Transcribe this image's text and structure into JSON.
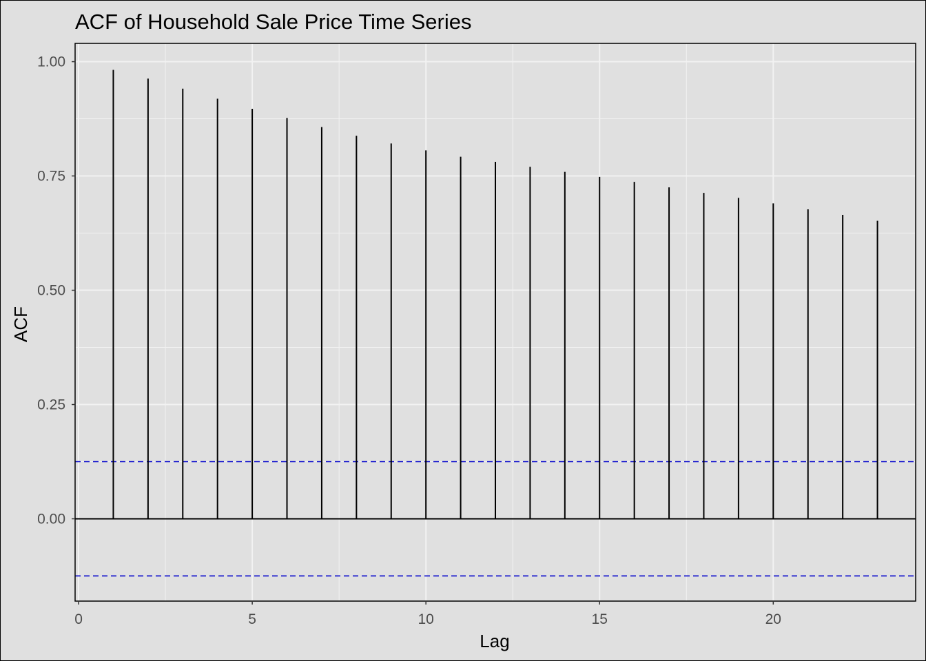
{
  "chart_data": {
    "type": "bar",
    "title": "ACF of Household Sale Price Time Series",
    "xlabel": "Lag",
    "ylabel": "ACF",
    "x": [
      1,
      2,
      3,
      4,
      5,
      6,
      7,
      8,
      9,
      10,
      11,
      12,
      13,
      14,
      15,
      16,
      17,
      18,
      19,
      20,
      21,
      22,
      23
    ],
    "values": [
      0.982,
      0.963,
      0.941,
      0.919,
      0.897,
      0.877,
      0.857,
      0.838,
      0.821,
      0.806,
      0.792,
      0.781,
      0.77,
      0.759,
      0.748,
      0.737,
      0.725,
      0.713,
      0.702,
      0.69,
      0.677,
      0.665,
      0.652
    ],
    "confidence_band": [
      0.125,
      -0.125
    ],
    "xlim": [
      -0.1,
      24.1
    ],
    "ylim": [
      -0.18,
      1.04
    ],
    "x_ticks": [
      0,
      5,
      10,
      15,
      20
    ],
    "x_tick_labels": [
      "0",
      "5",
      "10",
      "15",
      "20"
    ],
    "y_ticks": [
      0.0,
      0.25,
      0.5,
      0.75,
      1.0
    ],
    "y_tick_labels": [
      "0.00",
      "0.25",
      "0.50",
      "0.75",
      "1.00"
    ],
    "grid": true,
    "colors": {
      "background": "#e0e0e0",
      "grid": "#f2f2f2",
      "bars": "#000000",
      "confidence_band": "#0000cc"
    }
  }
}
